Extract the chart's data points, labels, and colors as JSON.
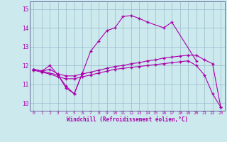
{
  "background_color": "#cce9ee",
  "line_color": "#aa00aa",
  "grid_color": "#99bbcc",
  "xlabel": "Windchill (Refroidissement éolien,°C)",
  "xlim": [
    -0.5,
    23.5
  ],
  "ylim": [
    9.6,
    15.4
  ],
  "yticks": [
    10,
    11,
    12,
    13,
    14,
    15
  ],
  "xticks": [
    0,
    1,
    2,
    3,
    4,
    5,
    6,
    7,
    8,
    9,
    10,
    11,
    12,
    13,
    14,
    15,
    16,
    17,
    18,
    19,
    20,
    21,
    22,
    23
  ],
  "series": [
    {
      "x": [
        0,
        1,
        2,
        3,
        4,
        5,
        6,
        7,
        8,
        9,
        10,
        11,
        12,
        13,
        14,
        16,
        17,
        20
      ],
      "y": [
        11.8,
        11.7,
        12.0,
        11.5,
        10.8,
        10.5,
        11.6,
        12.75,
        13.3,
        13.85,
        14.0,
        14.6,
        14.65,
        14.5,
        14.3,
        14.0,
        14.3,
        12.25
      ]
    },
    {
      "x": [
        0,
        1,
        3,
        4,
        5,
        6
      ],
      "y": [
        11.8,
        11.7,
        11.5,
        10.9,
        10.5,
        11.6
      ]
    },
    {
      "x": [
        0,
        1,
        2,
        3,
        4,
        5,
        6,
        7,
        8,
        9,
        10,
        11,
        12,
        13,
        14,
        15,
        16,
        17,
        18,
        19,
        20,
        21,
        22,
        23
      ],
      "y": [
        11.8,
        11.7,
        11.8,
        11.55,
        11.45,
        11.45,
        11.55,
        11.65,
        11.75,
        11.85,
        11.95,
        12.0,
        12.1,
        12.15,
        12.25,
        12.3,
        12.4,
        12.45,
        12.5,
        12.55,
        12.55,
        12.3,
        12.1,
        9.8
      ]
    },
    {
      "x": [
        0,
        1,
        2,
        3,
        4,
        5,
        6,
        7,
        8,
        9,
        10,
        11,
        12,
        13,
        14,
        15,
        16,
        17,
        18,
        19,
        20,
        21,
        22,
        23
      ],
      "y": [
        11.75,
        11.65,
        11.55,
        11.4,
        11.3,
        11.3,
        11.4,
        11.5,
        11.6,
        11.7,
        11.8,
        11.85,
        11.9,
        11.95,
        12.0,
        12.05,
        12.1,
        12.15,
        12.2,
        12.25,
        12.0,
        11.5,
        10.5,
        9.8
      ]
    }
  ]
}
